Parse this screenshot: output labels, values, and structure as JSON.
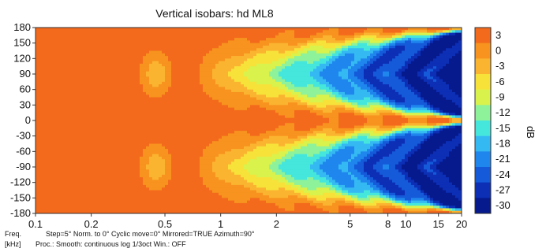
{
  "chart_data": {
    "type": "heatmap",
    "title": "Vertical isobars: hd ML8",
    "xlabel": "Freq. [kHz]",
    "xlabel_lines": [
      "Freq.",
      "[kHz]"
    ],
    "ylabel": "",
    "x_scale": "log",
    "xlim": [
      0.1,
      20
    ],
    "ylim": [
      -180,
      180
    ],
    "x_ticks": [
      0.1,
      0.2,
      0.5,
      1,
      2,
      5,
      8,
      10,
      15,
      20
    ],
    "y_ticks": [
      180,
      150,
      120,
      90,
      60,
      30,
      0,
      -30,
      -60,
      -90,
      -120,
      -150,
      -180
    ],
    "colorbar": {
      "label": "dB",
      "ticks": [
        3,
        0,
        -3,
        -6,
        -9,
        -12,
        -15,
        -18,
        -21,
        -24,
        -27,
        -30
      ],
      "levels": [
        {
          "level": 3,
          "color": "#f46a1c"
        },
        {
          "level": 0,
          "color": "#f7931e"
        },
        {
          "level": -3,
          "color": "#fbb430"
        },
        {
          "level": -6,
          "color": "#f7e23a"
        },
        {
          "level": -9,
          "color": "#d9f24c"
        },
        {
          "level": -12,
          "color": "#8ef29a"
        },
        {
          "level": -15,
          "color": "#45e6dc"
        },
        {
          "level": -18,
          "color": "#35b9f2"
        },
        {
          "level": -21,
          "color": "#1f86ee"
        },
        {
          "level": -24,
          "color": "#145ad9"
        },
        {
          "level": -27,
          "color": "#0c2fb6"
        },
        {
          "level": -30,
          "color": "#061a8e"
        }
      ]
    },
    "notes": [
      "Step=5°   Norm. to 0°   Cyclic move=0°   Mirrored=TRUE   Azimuth=90°",
      "Proc.: Smooth: continuous log 1/3oct   Win.: OFF"
    ],
    "grid": false,
    "description_values": {
      "on_axis_level_db": 0,
      "low_freq_level_db": 3
    }
  }
}
